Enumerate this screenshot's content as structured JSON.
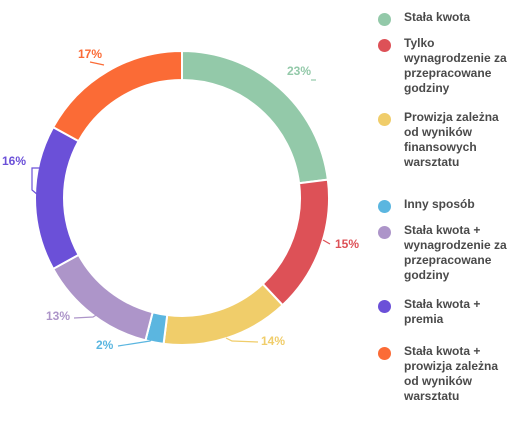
{
  "chart_data": {
    "type": "pie",
    "donut": true,
    "title": "",
    "legend_position": "right",
    "slices": [
      {
        "label": "Stała kwota",
        "value": 23,
        "value_label": "23%",
        "color": "#93c9a9"
      },
      {
        "label": "Tylko wynagrodzenie za przepracowane godziny",
        "value": 15,
        "value_label": "15%",
        "color": "#dd5157"
      },
      {
        "label": "Prowizja zależna od wyników finansowych warsztatu",
        "value": 14,
        "value_label": "14%",
        "color": "#f0cd6a"
      },
      {
        "label": "Inny sposób",
        "value": 2,
        "value_label": "2%",
        "color": "#5bb6e0"
      },
      {
        "label": "Stała kwota + wynagrodzenie za przepracowane godziny",
        "value": 13,
        "value_label": "13%",
        "color": "#ad95c9"
      },
      {
        "label": "Stała kwota + premia",
        "value": 16,
        "value_label": "16%",
        "color": "#6b50d8"
      },
      {
        "label": "Stała kwota + prowizja zależna od wyników warsztatu",
        "value": 17,
        "value_label": "17%",
        "color": "#fb6b36"
      }
    ]
  },
  "legend": {
    "items": [
      {
        "lines": [
          "Stała kwota"
        ]
      },
      {
        "lines": [
          "Tylko",
          "wynagrodzenie za",
          "przepracowane",
          "godziny"
        ]
      },
      {
        "lines": [
          "Prowizja zależna",
          "od wyników",
          "finansowych",
          "warsztatu"
        ]
      },
      {
        "lines": [
          "Inny sposób"
        ]
      },
      {
        "lines": [
          "Stała kwota +",
          "wynagrodzenie za",
          "przepracowane",
          "godziny"
        ]
      },
      {
        "lines": [
          "Stała kwota +",
          "premia"
        ]
      },
      {
        "lines": [
          "Stała kwota +",
          "prowizja zależna",
          "od wyników",
          "warsztatu"
        ]
      }
    ]
  }
}
